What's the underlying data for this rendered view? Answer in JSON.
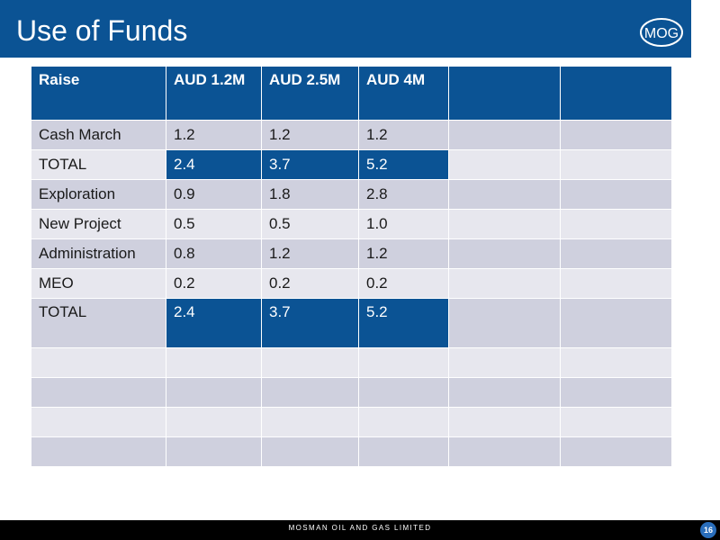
{
  "slide": {
    "title": "Use of Funds",
    "logo_text": "MOG",
    "footer_text": "MOSMAN OIL AND GAS LIMITED",
    "page_number": "16"
  },
  "table": {
    "headers": [
      "Raise",
      "AUD 1.2M",
      "AUD 2.5M",
      "AUD 4M",
      "",
      ""
    ],
    "rows": [
      [
        "Cash March",
        "1.2",
        "1.2",
        "1.2",
        "",
        ""
      ],
      [
        "TOTAL",
        "2.4",
        "3.7",
        "5.2",
        "",
        ""
      ],
      [
        "Exploration",
        "0.9",
        "1.8",
        "2.8",
        "",
        ""
      ],
      [
        "New Project",
        "0.5",
        "0.5",
        "1.0",
        "",
        ""
      ],
      [
        "Administration",
        "0.8",
        "1.2",
        "1.2",
        "",
        ""
      ],
      [
        "MEO",
        "0.2",
        "0.2",
        "0.2",
        "",
        ""
      ],
      [
        "TOTAL",
        "2.4",
        "3.7",
        "5.2",
        "",
        ""
      ],
      [
        "",
        "",
        "",
        "",
        "",
        ""
      ],
      [
        "",
        "",
        "",
        "",
        "",
        ""
      ],
      [
        "",
        "",
        "",
        "",
        "",
        ""
      ],
      [
        "",
        "",
        "",
        "",
        "",
        ""
      ]
    ]
  },
  "colors": {
    "brand_blue": "#0b5394",
    "row_dark": "#cfd0de",
    "row_light": "#e7e7ee"
  }
}
